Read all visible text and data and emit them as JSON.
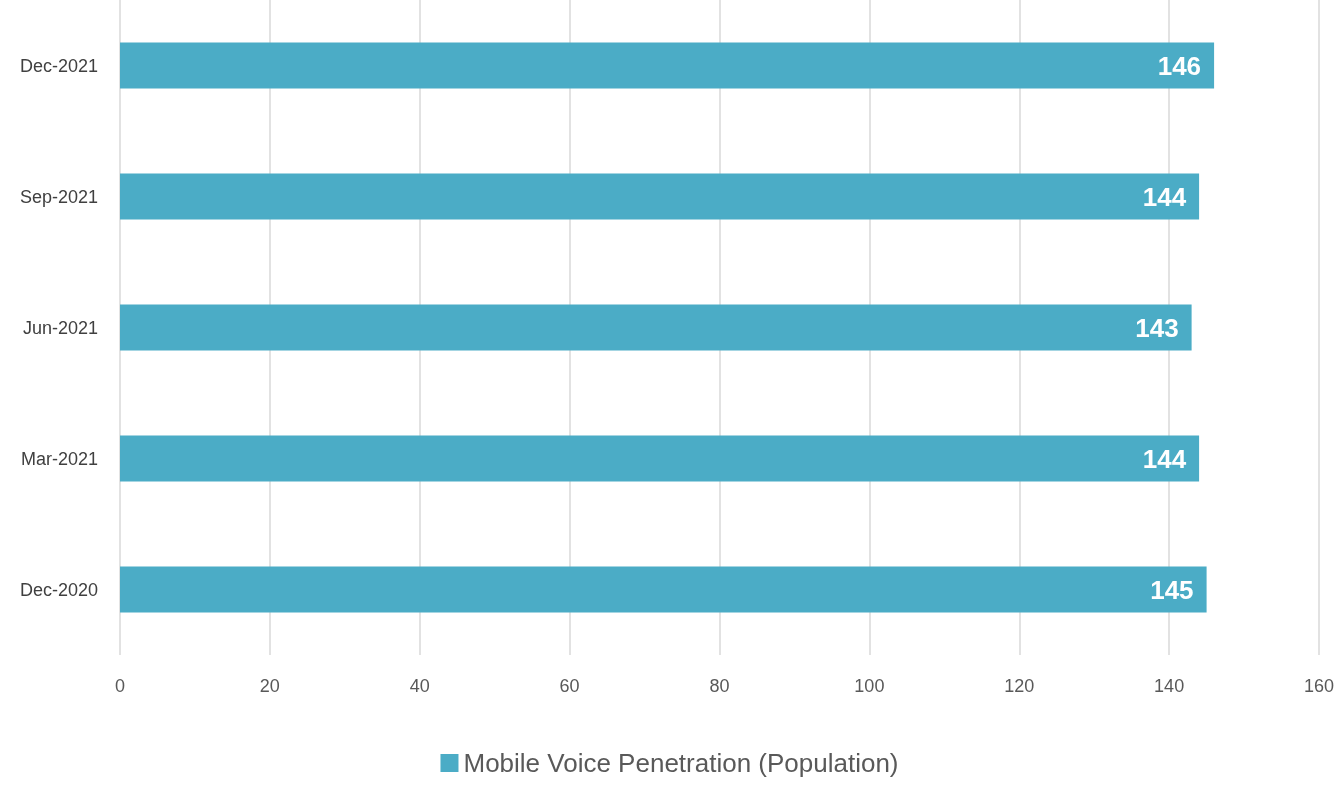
{
  "chart_data": {
    "type": "bar",
    "orientation": "horizontal",
    "categories": [
      "Dec-2021",
      "Sep-2021",
      "Jun-2021",
      "Mar-2021",
      "Dec-2020"
    ],
    "series": [
      {
        "name": "Mobile Voice Penetration (Population)",
        "color": "#4bacc6",
        "values": [
          146,
          144,
          143,
          144,
          145
        ]
      }
    ],
    "xlim": [
      0,
      160
    ],
    "xticks": [
      0,
      20,
      40,
      60,
      80,
      100,
      120,
      140,
      160
    ],
    "grid": "x",
    "legend": "bottom",
    "data_labels": true
  }
}
